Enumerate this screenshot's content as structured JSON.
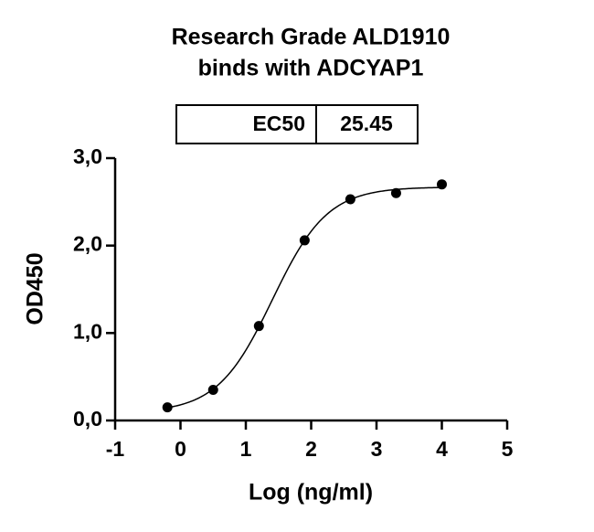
{
  "chart_data": {
    "type": "scatter",
    "title": [
      "Research Grade ALD1910",
      "binds with ADCYAP1"
    ],
    "ec50_label": "EC50",
    "ec50": 25.45,
    "x_label": "Log (ng/ml)",
    "y_label": "OD450",
    "x": [
      -0.2,
      0.5,
      1.2,
      1.9,
      2.6,
      3.3,
      4.0
    ],
    "values": [
      0.15,
      0.35,
      1.08,
      2.06,
      2.53,
      2.6,
      2.7
    ],
    "color": "#000000",
    "xlim": [
      -1,
      5
    ],
    "xticks": [
      -1,
      0,
      1,
      2,
      3,
      4,
      5
    ],
    "ylim": [
      0,
      3
    ],
    "yticks": [
      {
        "value": 0,
        "label": "0,0"
      },
      {
        "value": 1,
        "label": "1,0"
      },
      {
        "value": 2,
        "label": "2,0"
      },
      {
        "value": 3,
        "label": "3,0"
      }
    ]
  }
}
